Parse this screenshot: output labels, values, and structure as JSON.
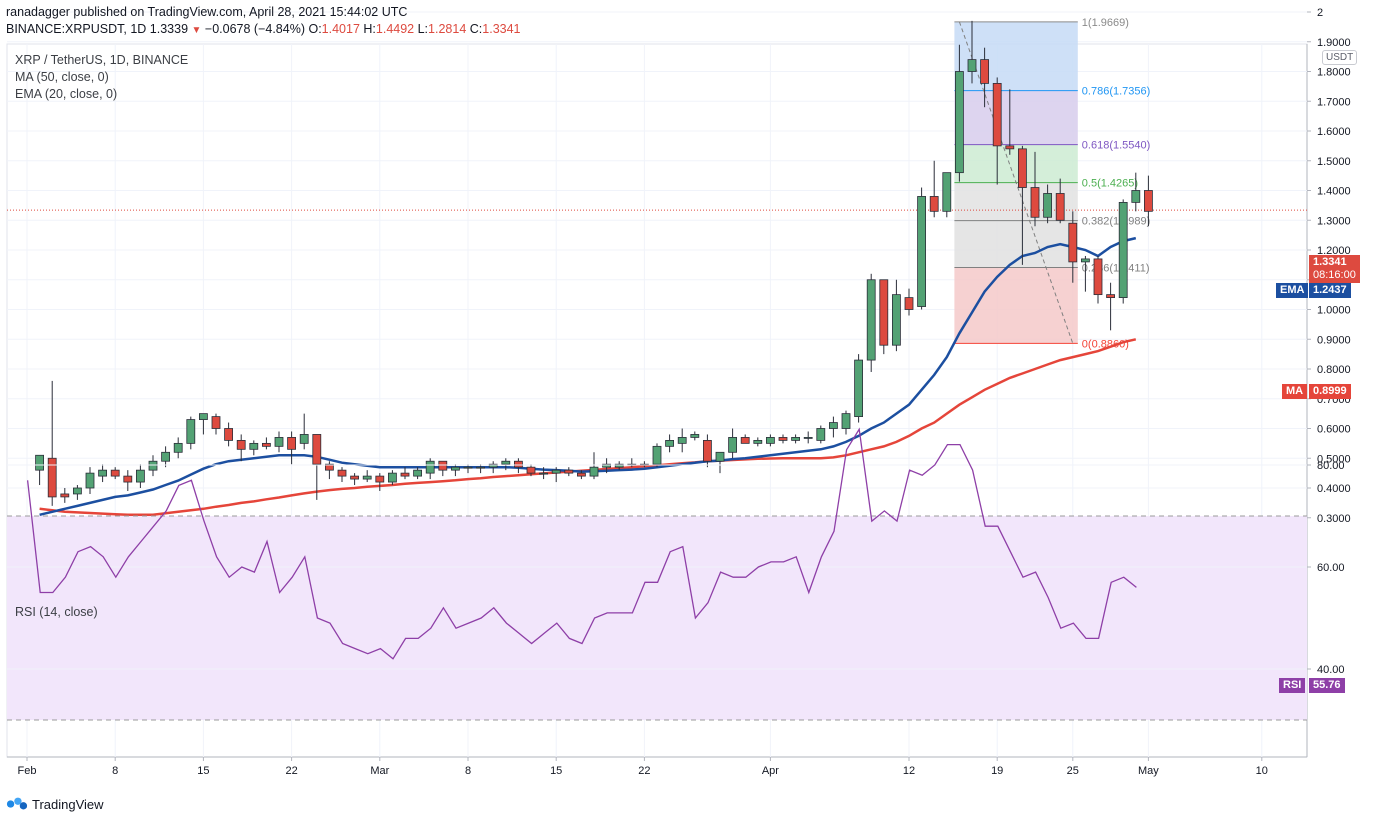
{
  "header": {
    "line1": "ranadagger published on TradingView.com, April 28, 2021 15:44:02 UTC",
    "symbol": "BINANCE:XRPUSDT, 1D",
    "last": "1.3339",
    "change": "−0.0678 (−4.84%)",
    "open_label": "O:",
    "open": "1.4017",
    "high_label": "H:",
    "high": "1.4492",
    "low_label": "L:",
    "low": "1.2814",
    "close_label": "C:",
    "close": "1.3341"
  },
  "legend": {
    "title": "XRP / TetherUS, 1D, BINANCE",
    "ma": "MA (50, close, 0)",
    "ema": "EMA (20, close, 0)",
    "rsi": "RSI (14, close)"
  },
  "currency_badge": "USDT",
  "tags": {
    "price": "1.3341",
    "countdown": "08:16:00",
    "ema_name": "EMA",
    "ema_value": "1.2437",
    "ma_name": "MA",
    "ma_value": "0.8999",
    "rsi_name": "RSI",
    "rsi_value": "55.76"
  },
  "brand": "TradingView",
  "colors": {
    "up": "#53a274",
    "down": "#dd4a3f",
    "ema": "#1c4fa0",
    "ma": "#e5453a",
    "rsi": "#8e3fa7"
  },
  "chart_data": [
    {
      "type": "candlestick",
      "y_axis": {
        "ylim": [
          0.25,
          2.05
        ],
        "ticks": [
          "2",
          "1.9000",
          "1.8000",
          "1.7000",
          "1.6000",
          "1.5000",
          "1.4000",
          "1.3000",
          "1.2000",
          "1.1000",
          "1.0000",
          "0.9000",
          "0.8000",
          "0.7000",
          "0.6000",
          "0.5000",
          "0.4000",
          "0.3000"
        ]
      },
      "x_axis": {
        "ticks": [
          {
            "label": "Feb",
            "day": 0
          },
          {
            "label": "8",
            "day": 7
          },
          {
            "label": "15",
            "day": 14
          },
          {
            "label": "22",
            "day": 21
          },
          {
            "label": "Mar",
            "day": 28
          },
          {
            "label": "8",
            "day": 35
          },
          {
            "label": "15",
            "day": 42
          },
          {
            "label": "22",
            "day": 49
          },
          {
            "label": "Apr",
            "day": 59
          },
          {
            "label": "12",
            "day": 70
          },
          {
            "label": "19",
            "day": 77
          },
          {
            "label": "25",
            "day": 83
          },
          {
            "label": "May",
            "day": 89
          },
          {
            "label": "10",
            "day": 98
          }
        ]
      },
      "candles": [
        {
          "o": 0.46,
          "h": 0.51,
          "l": 0.41,
          "c": 0.51
        },
        {
          "o": 0.5,
          "h": 0.76,
          "l": 0.34,
          "c": 0.37
        },
        {
          "o": 0.38,
          "h": 0.4,
          "l": 0.35,
          "c": 0.37
        },
        {
          "o": 0.38,
          "h": 0.41,
          "l": 0.36,
          "c": 0.4
        },
        {
          "o": 0.4,
          "h": 0.47,
          "l": 0.38,
          "c": 0.45
        },
        {
          "o": 0.44,
          "h": 0.48,
          "l": 0.42,
          "c": 0.46
        },
        {
          "o": 0.46,
          "h": 0.47,
          "l": 0.43,
          "c": 0.44
        },
        {
          "o": 0.44,
          "h": 0.46,
          "l": 0.39,
          "c": 0.42
        },
        {
          "o": 0.42,
          "h": 0.48,
          "l": 0.4,
          "c": 0.46
        },
        {
          "o": 0.46,
          "h": 0.51,
          "l": 0.44,
          "c": 0.49
        },
        {
          "o": 0.49,
          "h": 0.54,
          "l": 0.47,
          "c": 0.52
        },
        {
          "o": 0.52,
          "h": 0.57,
          "l": 0.5,
          "c": 0.55
        },
        {
          "o": 0.55,
          "h": 0.64,
          "l": 0.53,
          "c": 0.63
        },
        {
          "o": 0.63,
          "h": 0.65,
          "l": 0.58,
          "c": 0.65
        },
        {
          "o": 0.64,
          "h": 0.65,
          "l": 0.58,
          "c": 0.6
        },
        {
          "o": 0.6,
          "h": 0.62,
          "l": 0.54,
          "c": 0.56
        },
        {
          "o": 0.56,
          "h": 0.58,
          "l": 0.49,
          "c": 0.53
        },
        {
          "o": 0.53,
          "h": 0.56,
          "l": 0.51,
          "c": 0.55
        },
        {
          "o": 0.55,
          "h": 0.57,
          "l": 0.53,
          "c": 0.54
        },
        {
          "o": 0.54,
          "h": 0.59,
          "l": 0.52,
          "c": 0.57
        },
        {
          "o": 0.57,
          "h": 0.59,
          "l": 0.48,
          "c": 0.53
        },
        {
          "o": 0.55,
          "h": 0.65,
          "l": 0.53,
          "c": 0.58
        },
        {
          "o": 0.58,
          "h": 0.58,
          "l": 0.36,
          "c": 0.48
        },
        {
          "o": 0.48,
          "h": 0.49,
          "l": 0.43,
          "c": 0.46
        },
        {
          "o": 0.46,
          "h": 0.47,
          "l": 0.42,
          "c": 0.44
        },
        {
          "o": 0.44,
          "h": 0.45,
          "l": 0.41,
          "c": 0.43
        },
        {
          "o": 0.43,
          "h": 0.46,
          "l": 0.42,
          "c": 0.44
        },
        {
          "o": 0.44,
          "h": 0.45,
          "l": 0.39,
          "c": 0.42
        },
        {
          "o": 0.42,
          "h": 0.46,
          "l": 0.41,
          "c": 0.45
        },
        {
          "o": 0.45,
          "h": 0.47,
          "l": 0.43,
          "c": 0.44
        },
        {
          "o": 0.44,
          "h": 0.47,
          "l": 0.43,
          "c": 0.46
        },
        {
          "o": 0.45,
          "h": 0.5,
          "l": 0.43,
          "c": 0.49
        },
        {
          "o": 0.49,
          "h": 0.49,
          "l": 0.44,
          "c": 0.46
        },
        {
          "o": 0.46,
          "h": 0.48,
          "l": 0.44,
          "c": 0.47
        },
        {
          "o": 0.47,
          "h": 0.48,
          "l": 0.45,
          "c": 0.47
        },
        {
          "o": 0.47,
          "h": 0.48,
          "l": 0.45,
          "c": 0.47
        },
        {
          "o": 0.47,
          "h": 0.49,
          "l": 0.45,
          "c": 0.48
        },
        {
          "o": 0.48,
          "h": 0.5,
          "l": 0.46,
          "c": 0.49
        },
        {
          "o": 0.49,
          "h": 0.5,
          "l": 0.45,
          "c": 0.47
        },
        {
          "o": 0.47,
          "h": 0.48,
          "l": 0.44,
          "c": 0.45
        },
        {
          "o": 0.45,
          "h": 0.47,
          "l": 0.43,
          "c": 0.45
        },
        {
          "o": 0.45,
          "h": 0.47,
          "l": 0.42,
          "c": 0.46
        },
        {
          "o": 0.46,
          "h": 0.47,
          "l": 0.44,
          "c": 0.45
        },
        {
          "o": 0.45,
          "h": 0.46,
          "l": 0.43,
          "c": 0.44
        },
        {
          "o": 0.44,
          "h": 0.52,
          "l": 0.43,
          "c": 0.47
        },
        {
          "o": 0.47,
          "h": 0.5,
          "l": 0.45,
          "c": 0.48
        },
        {
          "o": 0.47,
          "h": 0.49,
          "l": 0.46,
          "c": 0.48
        },
        {
          "o": 0.48,
          "h": 0.5,
          "l": 0.47,
          "c": 0.48
        },
        {
          "o": 0.48,
          "h": 0.49,
          "l": 0.47,
          "c": 0.48
        },
        {
          "o": 0.48,
          "h": 0.55,
          "l": 0.47,
          "c": 0.54
        },
        {
          "o": 0.54,
          "h": 0.58,
          "l": 0.52,
          "c": 0.56
        },
        {
          "o": 0.55,
          "h": 0.6,
          "l": 0.52,
          "c": 0.57
        },
        {
          "o": 0.57,
          "h": 0.59,
          "l": 0.56,
          "c": 0.58
        },
        {
          "o": 0.56,
          "h": 0.58,
          "l": 0.47,
          "c": 0.49
        },
        {
          "o": 0.49,
          "h": 0.52,
          "l": 0.45,
          "c": 0.52
        },
        {
          "o": 0.52,
          "h": 0.6,
          "l": 0.5,
          "c": 0.57
        },
        {
          "o": 0.57,
          "h": 0.58,
          "l": 0.55,
          "c": 0.55
        },
        {
          "o": 0.55,
          "h": 0.57,
          "l": 0.54,
          "c": 0.56
        },
        {
          "o": 0.55,
          "h": 0.58,
          "l": 0.54,
          "c": 0.57
        },
        {
          "o": 0.57,
          "h": 0.58,
          "l": 0.55,
          "c": 0.56
        },
        {
          "o": 0.56,
          "h": 0.58,
          "l": 0.55,
          "c": 0.57
        },
        {
          "o": 0.57,
          "h": 0.59,
          "l": 0.55,
          "c": 0.57
        },
        {
          "o": 0.56,
          "h": 0.61,
          "l": 0.55,
          "c": 0.6
        },
        {
          "o": 0.6,
          "h": 0.64,
          "l": 0.57,
          "c": 0.62
        },
        {
          "o": 0.6,
          "h": 0.66,
          "l": 0.58,
          "c": 0.65
        },
        {
          "o": 0.64,
          "h": 0.85,
          "l": 0.62,
          "c": 0.83
        },
        {
          "o": 0.83,
          "h": 1.12,
          "l": 0.79,
          "c": 1.1
        },
        {
          "o": 1.1,
          "h": 1.1,
          "l": 0.85,
          "c": 0.88
        },
        {
          "o": 0.88,
          "h": 1.1,
          "l": 0.86,
          "c": 1.05
        },
        {
          "o": 1.04,
          "h": 1.07,
          "l": 0.98,
          "c": 1.0
        },
        {
          "o": 1.01,
          "h": 1.41,
          "l": 1.0,
          "c": 1.38
        },
        {
          "o": 1.38,
          "h": 1.5,
          "l": 1.31,
          "c": 1.33
        },
        {
          "o": 1.33,
          "h": 1.46,
          "l": 1.31,
          "c": 1.46
        },
        {
          "o": 1.46,
          "h": 1.89,
          "l": 1.43,
          "c": 1.8
        },
        {
          "o": 1.8,
          "h": 1.97,
          "l": 1.76,
          "c": 1.84
        },
        {
          "o": 1.84,
          "h": 1.88,
          "l": 1.68,
          "c": 1.76
        },
        {
          "o": 1.76,
          "h": 1.78,
          "l": 1.42,
          "c": 1.55
        },
        {
          "o": 1.55,
          "h": 1.74,
          "l": 1.52,
          "c": 1.54
        },
        {
          "o": 1.54,
          "h": 1.55,
          "l": 1.15,
          "c": 1.41
        },
        {
          "o": 1.41,
          "h": 1.53,
          "l": 1.28,
          "c": 1.31
        },
        {
          "o": 1.31,
          "h": 1.42,
          "l": 1.29,
          "c": 1.39
        },
        {
          "o": 1.39,
          "h": 1.44,
          "l": 1.29,
          "c": 1.3
        },
        {
          "o": 1.29,
          "h": 1.33,
          "l": 1.09,
          "c": 1.16
        },
        {
          "o": 1.16,
          "h": 1.18,
          "l": 1.06,
          "c": 1.17
        },
        {
          "o": 1.17,
          "h": 1.18,
          "l": 1.02,
          "c": 1.05
        },
        {
          "o": 1.05,
          "h": 1.09,
          "l": 0.93,
          "c": 1.04
        },
        {
          "o": 1.04,
          "h": 1.37,
          "l": 1.02,
          "c": 1.36
        },
        {
          "o": 1.36,
          "h": 1.46,
          "l": 1.33,
          "c": 1.4
        },
        {
          "o": 1.4,
          "h": 1.45,
          "l": 1.28,
          "c": 1.33
        }
      ],
      "ema20": [
        0.31,
        0.32,
        0.33,
        0.34,
        0.35,
        0.36,
        0.37,
        0.375,
        0.385,
        0.395,
        0.41,
        0.425,
        0.445,
        0.465,
        0.48,
        0.49,
        0.495,
        0.5,
        0.505,
        0.51,
        0.51,
        0.51,
        0.505,
        0.495,
        0.485,
        0.48,
        0.475,
        0.47,
        0.47,
        0.47,
        0.47,
        0.47,
        0.47,
        0.47,
        0.47,
        0.47,
        0.47,
        0.47,
        0.468,
        0.465,
        0.462,
        0.46,
        0.458,
        0.455,
        0.456,
        0.458,
        0.46,
        0.462,
        0.465,
        0.47,
        0.475,
        0.48,
        0.485,
        0.49,
        0.492,
        0.497,
        0.5,
        0.505,
        0.51,
        0.515,
        0.52,
        0.525,
        0.53,
        0.54,
        0.555,
        0.575,
        0.6,
        0.62,
        0.65,
        0.68,
        0.73,
        0.78,
        0.84,
        0.92,
        0.99,
        1.06,
        1.11,
        1.15,
        1.18,
        1.19,
        1.21,
        1.22,
        1.21,
        1.2,
        1.18,
        1.21,
        1.23,
        1.24
      ],
      "ma50": [
        0.33,
        0.325,
        0.32,
        0.318,
        0.316,
        0.314,
        0.312,
        0.31,
        0.31,
        0.31,
        0.315,
        0.32,
        0.325,
        0.33,
        0.337,
        0.343,
        0.35,
        0.355,
        0.362,
        0.368,
        0.375,
        0.382,
        0.388,
        0.393,
        0.397,
        0.4,
        0.404,
        0.407,
        0.41,
        0.414,
        0.417,
        0.42,
        0.423,
        0.426,
        0.43,
        0.433,
        0.437,
        0.44,
        0.443,
        0.446,
        0.449,
        0.452,
        0.455,
        0.458,
        0.461,
        0.464,
        0.467,
        0.47,
        0.473,
        0.476,
        0.48,
        0.483,
        0.486,
        0.49,
        0.492,
        0.494,
        0.496,
        0.498,
        0.499,
        0.5,
        0.5,
        0.5,
        0.5,
        0.503,
        0.51,
        0.52,
        0.53,
        0.54,
        0.555,
        0.575,
        0.6,
        0.62,
        0.65,
        0.68,
        0.705,
        0.73,
        0.75,
        0.77,
        0.785,
        0.8,
        0.815,
        0.83,
        0.84,
        0.85,
        0.86,
        0.875,
        0.89,
        0.9
      ],
      "fibonacci": [
        {
          "ratio": "1",
          "label": "1(1.9669)",
          "price": 1.9669
        },
        {
          "ratio": "0.786",
          "label": "0.786(1.7356)",
          "price": 1.7356
        },
        {
          "ratio": "0.618",
          "label": "0.618(1.5540)",
          "price": 1.554
        },
        {
          "ratio": "0.5",
          "label": "0.5(1.4265)",
          "price": 1.4265
        },
        {
          "ratio": "0.382",
          "label": "0.382(1.2989)",
          "price": 1.2989
        },
        {
          "ratio": "0.236",
          "label": "0.236(1.1411)",
          "price": 1.1411
        },
        {
          "ratio": "0",
          "label": "0(0.8860)",
          "price": 0.886
        }
      ],
      "current_price": 1.3341
    },
    {
      "type": "line",
      "name": "RSI (14, close)",
      "ylim": [
        28,
        90
      ],
      "ticks": [
        "80.00",
        "60.00",
        "40.00"
      ],
      "band": [
        30,
        70
      ],
      "values": [
        77,
        55,
        55,
        58,
        63,
        64,
        62,
        58,
        62,
        65,
        68,
        71,
        76,
        77,
        69,
        62,
        58,
        60,
        59,
        65,
        55,
        58,
        62,
        50,
        49,
        45,
        44,
        43,
        44,
        42,
        46,
        46,
        48,
        52,
        48,
        49,
        50,
        52,
        49,
        47,
        45,
        47,
        49,
        46,
        45,
        50,
        51,
        51,
        51,
        57,
        57,
        63,
        64,
        50,
        53,
        59,
        58,
        58,
        60,
        61,
        61,
        62,
        55,
        62,
        67,
        83,
        87,
        69,
        71,
        69,
        79,
        78,
        80,
        84,
        84,
        79,
        68,
        68,
        63,
        58,
        59,
        54,
        48,
        49,
        46,
        46,
        57,
        58,
        56
      ]
    }
  ]
}
